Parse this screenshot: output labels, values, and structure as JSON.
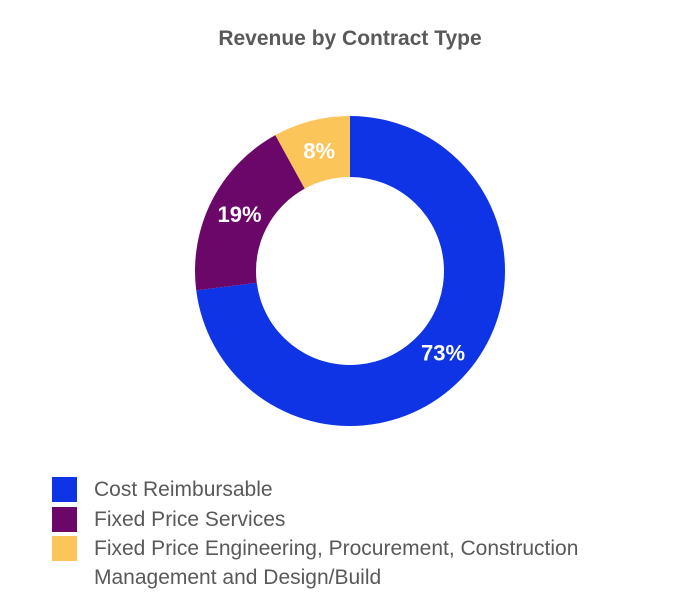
{
  "chart_data": {
    "type": "pie",
    "variant": "donut",
    "title": "Revenue by Contract Type",
    "categories": [
      "Cost Reimbursable",
      "Fixed Price Services",
      "Fixed Price Engineering, Procurement, Construction Management and Design/Build"
    ],
    "values": [
      73,
      19,
      8
    ],
    "data_labels": [
      "73%",
      "19%",
      "8%"
    ],
    "colors": [
      "#0E34E6",
      "#6B0768",
      "#FBC55A"
    ],
    "legend": "bottom"
  }
}
